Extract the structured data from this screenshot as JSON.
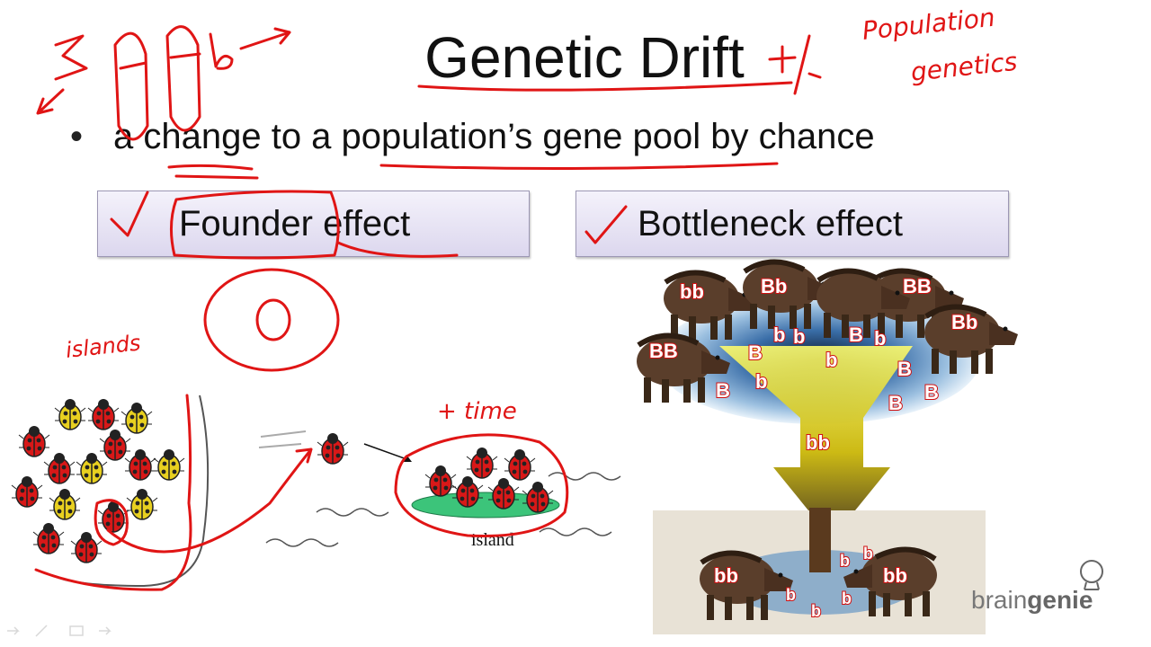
{
  "slide": {
    "title": "Genetic Drift",
    "bullet_marker": "•",
    "bullet": "a change to a population’s gene pool by chance",
    "boxes": {
      "founder": "Founder effect",
      "bottleneck": "Bottleneck effect"
    },
    "island_label": "island",
    "brand": {
      "light": "brain",
      "bold": "genie"
    }
  },
  "handwriting": {
    "alleles": "B   b",
    "plus_minus": "+/-",
    "population_genetics_1": "Population",
    "population_genetics_2": "genetics",
    "islands": "islands",
    "plus_time": "+ time",
    "circle_o": "O"
  },
  "bottleneck_labels": {
    "boars_top": [
      "bb",
      "Bb",
      "BB",
      "Bb",
      "BB"
    ],
    "funnel": [
      "B",
      "b",
      "b",
      "B",
      "b",
      "B",
      "b",
      "B",
      "B",
      "b",
      "B"
    ],
    "funnel_center": "bb",
    "boars_bottom": [
      "bb",
      "bb"
    ],
    "drops": [
      "b",
      "b",
      "b",
      "b",
      "b"
    ]
  },
  "colors": {
    "ink": "#e01515",
    "box_border": "#9c97b4",
    "ladybug_red": "#d81818",
    "ladybug_yellow": "#e8d020",
    "island_green": "#3cc47a",
    "funnel_yellow": "#f5f000",
    "water_blue": "#3a6ea8"
  }
}
